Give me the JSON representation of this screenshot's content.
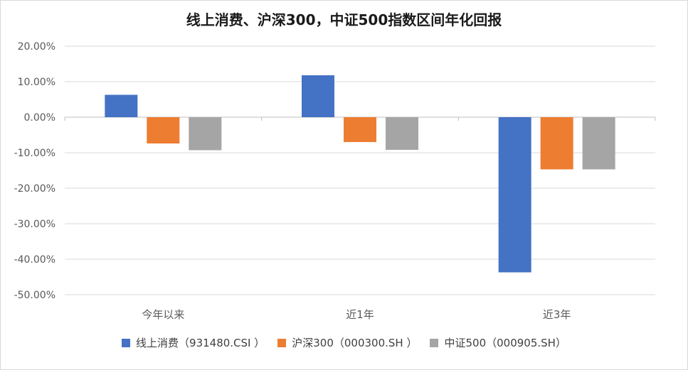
{
  "chart_data": {
    "type": "bar",
    "title": "线上消费、沪深300，中证500指数区间年化回报",
    "categories": [
      "今年以来",
      "近1年",
      "近3年"
    ],
    "series": [
      {
        "name": "线上消费（931480.CSI ）",
        "color": "#4472c4",
        "values": [
          6.3,
          11.8,
          -43.7
        ]
      },
      {
        "name": "沪深300（000300.SH ）",
        "color": "#ed7d31",
        "values": [
          -7.4,
          -7.0,
          -14.7
        ]
      },
      {
        "name": "中证500（000905.SH）",
        "color": "#a5a5a5",
        "values": [
          -9.3,
          -9.2,
          -14.7
        ]
      }
    ],
    "ylim": [
      -50,
      20
    ],
    "yticks": [
      "20.00%",
      "10.00%",
      "0.00%",
      "-10.00%",
      "-20.00%",
      "-30.00%",
      "-40.00%",
      "-50.00%"
    ],
    "grid": true,
    "legend_position": "bottom"
  }
}
